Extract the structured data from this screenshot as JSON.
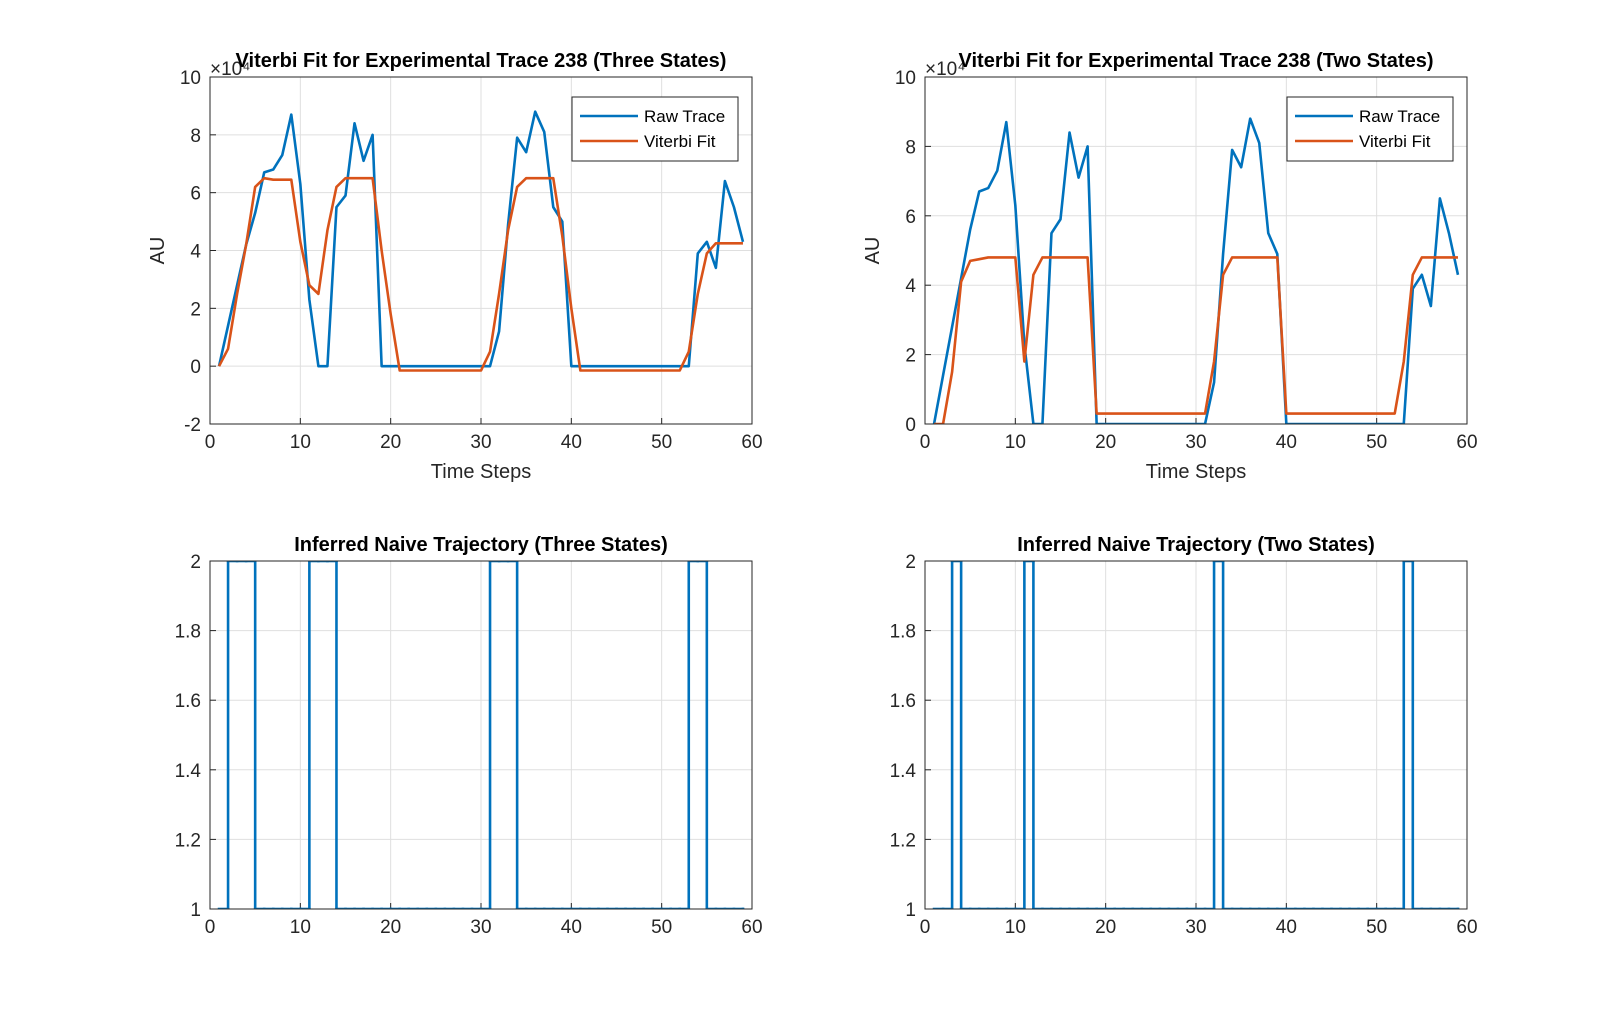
{
  "chart_data": [
    {
      "type": "line",
      "title": "Viterbi Fit for Experimental Trace 238 (Three States)",
      "xlabel": "Time Steps",
      "ylabel": "AU",
      "y_exponent_label": "×10⁴",
      "x": [
        1,
        2,
        3,
        4,
        5,
        6,
        7,
        8,
        9,
        10,
        11,
        12,
        13,
        14,
        15,
        16,
        17,
        18,
        19,
        20,
        21,
        22,
        23,
        24,
        25,
        26,
        27,
        28,
        29,
        30,
        31,
        32,
        33,
        34,
        35,
        36,
        37,
        38,
        39,
        40,
        41,
        42,
        43,
        44,
        45,
        46,
        47,
        48,
        49,
        50,
        51,
        52,
        53,
        54,
        55,
        56,
        57,
        58,
        59
      ],
      "series": [
        {
          "name": "Raw Trace",
          "color": "#0072BD",
          "values": [
            0,
            1.4,
            2.8,
            4.2,
            5.3,
            6.7,
            6.8,
            7.3,
            8.7,
            6.3,
            2.3,
            0,
            0,
            5.5,
            5.9,
            8.4,
            7.1,
            8.0,
            0,
            0,
            0,
            0,
            0,
            0,
            0,
            0,
            0,
            0,
            0,
            0,
            0,
            1.2,
            4.9,
            7.9,
            7.4,
            8.8,
            8.1,
            5.5,
            5.0,
            0,
            0,
            0,
            0,
            0,
            0,
            0,
            0,
            0,
            0,
            0,
            0,
            0,
            0,
            3.9,
            4.3,
            3.4,
            6.4,
            5.5,
            4.3
          ]
        },
        {
          "name": "Viterbi Fit",
          "color": "#D95319",
          "values": [
            0,
            0.6,
            2.5,
            4.2,
            6.2,
            6.5,
            6.45,
            6.45,
            6.45,
            4.3,
            2.8,
            2.5,
            4.7,
            6.2,
            6.5,
            6.5,
            6.5,
            6.5,
            4.0,
            1.8,
            -0.15,
            -0.15,
            -0.15,
            -0.15,
            -0.15,
            -0.15,
            -0.15,
            -0.15,
            -0.15,
            -0.15,
            0.5,
            2.5,
            4.7,
            6.2,
            6.5,
            6.5,
            6.5,
            6.5,
            4.5,
            2.0,
            -0.15,
            -0.15,
            -0.15,
            -0.15,
            -0.15,
            -0.15,
            -0.15,
            -0.15,
            -0.15,
            -0.15,
            -0.15,
            -0.15,
            0.5,
            2.5,
            3.9,
            4.25,
            4.25,
            4.25,
            4.25
          ]
        }
      ],
      "xlim": [
        0,
        60
      ],
      "xticks": [
        0,
        10,
        20,
        30,
        40,
        50,
        60
      ],
      "ylim": [
        -2,
        10
      ],
      "yticks": [
        -2,
        0,
        2,
        4,
        6,
        8,
        10
      ],
      "grid": true,
      "legend": "northeast"
    },
    {
      "type": "line",
      "title": "Viterbi Fit for Experimental Trace  238 (Two States)",
      "xlabel": "Time Steps",
      "ylabel": "AU",
      "y_exponent_label": "×10⁴",
      "x": [
        1,
        2,
        3,
        4,
        5,
        6,
        7,
        8,
        9,
        10,
        11,
        12,
        13,
        14,
        15,
        16,
        17,
        18,
        19,
        20,
        21,
        22,
        23,
        24,
        25,
        26,
        27,
        28,
        29,
        30,
        31,
        32,
        33,
        34,
        35,
        36,
        37,
        38,
        39,
        40,
        41,
        42,
        43,
        44,
        45,
        46,
        47,
        48,
        49,
        50,
        51,
        52,
        53,
        54,
        55,
        56,
        57,
        58,
        59
      ],
      "series": [
        {
          "name": "Raw Trace",
          "color": "#0072BD",
          "values": [
            0,
            1.4,
            2.8,
            4.2,
            5.6,
            6.7,
            6.8,
            7.3,
            8.7,
            6.3,
            2.3,
            0,
            0,
            5.5,
            5.9,
            8.4,
            7.1,
            8.0,
            0,
            0,
            0,
            0,
            0,
            0,
            0,
            0,
            0,
            0,
            0,
            0,
            0,
            1.2,
            4.9,
            7.9,
            7.4,
            8.8,
            8.1,
            5.5,
            4.9,
            0,
            0,
            0,
            0,
            0,
            0,
            0,
            0,
            0,
            0,
            0,
            0,
            0,
            0,
            3.9,
            4.3,
            3.4,
            6.5,
            5.5,
            4.3
          ]
        },
        {
          "name": "Viterbi Fit",
          "color": "#D95319",
          "values": [
            0,
            0,
            1.5,
            4.1,
            4.7,
            4.75,
            4.8,
            4.8,
            4.8,
            4.8,
            1.8,
            4.3,
            4.8,
            4.8,
            4.8,
            4.8,
            4.8,
            4.8,
            0.3,
            0.3,
            0.3,
            0.3,
            0.3,
            0.3,
            0.3,
            0.3,
            0.3,
            0.3,
            0.3,
            0.3,
            0.3,
            1.8,
            4.3,
            4.8,
            4.8,
            4.8,
            4.8,
            4.8,
            4.8,
            0.3,
            0.3,
            0.3,
            0.3,
            0.3,
            0.3,
            0.3,
            0.3,
            0.3,
            0.3,
            0.3,
            0.3,
            0.3,
            1.8,
            4.3,
            4.8,
            4.8,
            4.8,
            4.8,
            4.8
          ]
        }
      ],
      "xlim": [
        0,
        60
      ],
      "xticks": [
        0,
        10,
        20,
        30,
        40,
        50,
        60
      ],
      "ylim": [
        0,
        10
      ],
      "yticks": [
        0,
        2,
        4,
        6,
        8,
        10
      ],
      "grid": true,
      "legend": "northeast"
    },
    {
      "type": "step",
      "title": "Inferred Naive Trajectory (Three States)",
      "x": [
        1,
        2,
        3,
        4,
        5,
        6,
        7,
        8,
        9,
        10,
        11,
        12,
        13,
        14,
        15,
        16,
        17,
        18,
        19,
        20,
        21,
        22,
        23,
        24,
        25,
        26,
        27,
        28,
        29,
        30,
        31,
        32,
        33,
        34,
        35,
        36,
        37,
        38,
        39,
        40,
        41,
        42,
        43,
        44,
        45,
        46,
        47,
        48,
        49,
        50,
        51,
        52,
        53,
        54,
        55,
        56,
        57,
        58,
        59
      ],
      "values": [
        1,
        2,
        2,
        2,
        1,
        1,
        1,
        1,
        1,
        1,
        2,
        2,
        2,
        1,
        1,
        1,
        1,
        1,
        1,
        1,
        1,
        1,
        1,
        1,
        1,
        1,
        1,
        1,
        1,
        1,
        2,
        2,
        2,
        1,
        1,
        1,
        1,
        1,
        1,
        1,
        1,
        1,
        1,
        1,
        1,
        1,
        1,
        1,
        1,
        1,
        1,
        1,
        2,
        2,
        1,
        1,
        1,
        1,
        1
      ],
      "color": "#0072BD",
      "xlim": [
        0,
        60
      ],
      "xticks": [
        0,
        10,
        20,
        30,
        40,
        50,
        60
      ],
      "ylim": [
        1,
        2
      ],
      "yticks": [
        1,
        1.2,
        1.4,
        1.6,
        1.8,
        2
      ],
      "grid": true
    },
    {
      "type": "step",
      "title": "Inferred Naive Trajectory (Two States)",
      "x": [
        1,
        2,
        3,
        4,
        5,
        6,
        7,
        8,
        9,
        10,
        11,
        12,
        13,
        14,
        15,
        16,
        17,
        18,
        19,
        20,
        21,
        22,
        23,
        24,
        25,
        26,
        27,
        28,
        29,
        30,
        31,
        32,
        33,
        34,
        35,
        36,
        37,
        38,
        39,
        40,
        41,
        42,
        43,
        44,
        45,
        46,
        47,
        48,
        49,
        50,
        51,
        52,
        53,
        54,
        55,
        56,
        57,
        58,
        59
      ],
      "values": [
        1,
        1,
        2,
        1,
        1,
        1,
        1,
        1,
        1,
        1,
        2,
        1,
        1,
        1,
        1,
        1,
        1,
        1,
        1,
        1,
        1,
        1,
        1,
        1,
        1,
        1,
        1,
        1,
        1,
        1,
        1,
        2,
        1,
        1,
        1,
        1,
        1,
        1,
        1,
        1,
        1,
        1,
        1,
        1,
        1,
        1,
        1,
        1,
        1,
        1,
        1,
        1,
        2,
        1,
        1,
        1,
        1,
        1,
        1
      ],
      "color": "#0072BD",
      "xlim": [
        0,
        60
      ],
      "xticks": [
        0,
        10,
        20,
        30,
        40,
        50,
        60
      ],
      "ylim": [
        1,
        2
      ],
      "yticks": [
        1,
        1.2,
        1.4,
        1.6,
        1.8,
        2
      ],
      "grid": true
    }
  ]
}
